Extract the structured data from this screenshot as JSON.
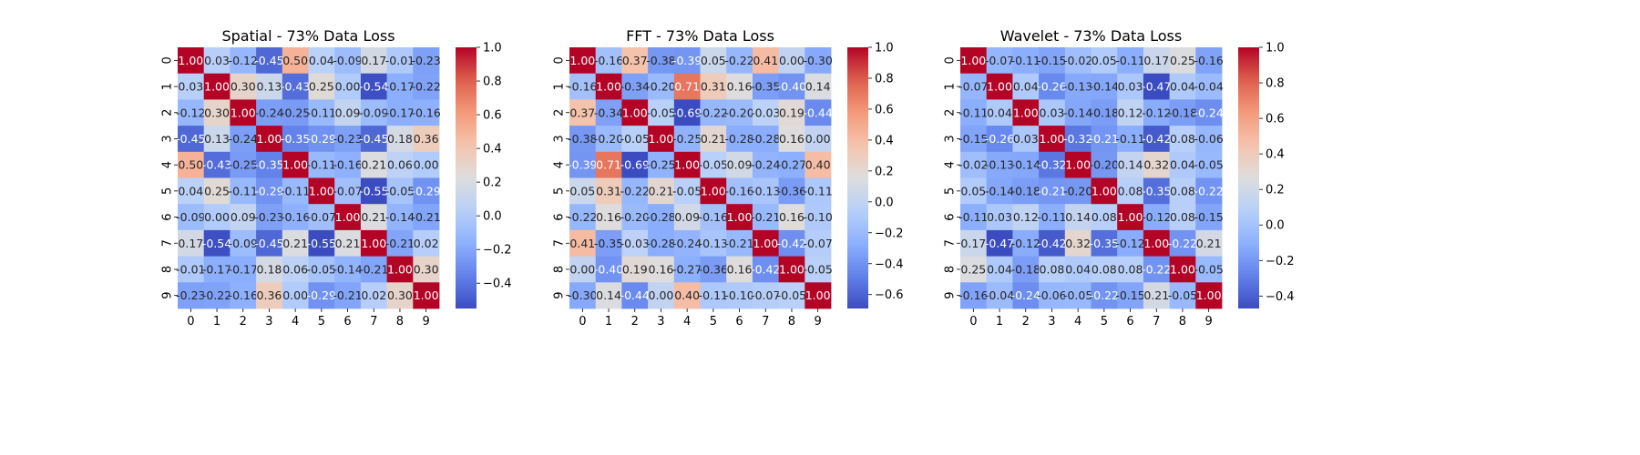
{
  "chart_data": [
    {
      "type": "heatmap",
      "title": "Spatial - 73% Data Loss",
      "x_labels": [
        "0",
        "1",
        "2",
        "3",
        "4",
        "5",
        "6",
        "7",
        "8",
        "9"
      ],
      "y_labels": [
        "0",
        "1",
        "2",
        "3",
        "4",
        "5",
        "6",
        "7",
        "8",
        "9"
      ],
      "colormap": "coolwarm",
      "colorbar": {
        "vmin": -0.55,
        "vmax": 1.0,
        "ticks": [
          -0.4,
          -0.2,
          0.0,
          0.2,
          0.4,
          0.6,
          0.8,
          1.0
        ]
      },
      "values": [
        [
          1.0,
          0.03,
          -0.12,
          -0.45,
          0.5,
          0.04,
          -0.09,
          0.17,
          -0.01,
          -0.23
        ],
        [
          0.03,
          1.0,
          0.3,
          0.13,
          -0.43,
          0.25,
          -0.0,
          -0.54,
          -0.17,
          -0.22
        ],
        [
          -0.12,
          0.3,
          1.0,
          -0.24,
          -0.25,
          -0.11,
          0.09,
          -0.09,
          -0.17,
          -0.16
        ],
        [
          -0.45,
          0.13,
          -0.24,
          1.0,
          -0.35,
          -0.29,
          -0.23,
          -0.45,
          0.18,
          0.36
        ],
        [
          0.5,
          -0.43,
          -0.25,
          -0.35,
          1.0,
          -0.11,
          -0.16,
          0.21,
          0.06,
          -0.0
        ],
        [
          0.04,
          0.25,
          -0.11,
          -0.29,
          -0.11,
          1.0,
          -0.07,
          -0.55,
          -0.05,
          -0.29
        ],
        [
          -0.09,
          -0.0,
          0.09,
          -0.23,
          -0.16,
          -0.07,
          1.0,
          0.21,
          -0.14,
          -0.21
        ],
        [
          0.17,
          -0.54,
          -0.09,
          -0.45,
          0.21,
          -0.55,
          0.21,
          1.0,
          -0.21,
          0.02
        ],
        [
          -0.01,
          -0.17,
          -0.17,
          0.18,
          0.06,
          -0.05,
          -0.14,
          -0.21,
          1.0,
          0.3
        ],
        [
          -0.23,
          -0.22,
          -0.16,
          0.36,
          -0.0,
          -0.29,
          -0.21,
          0.02,
          0.3,
          1.0
        ]
      ]
    },
    {
      "type": "heatmap",
      "title": "FFT - 73% Data Loss",
      "x_labels": [
        "0",
        "1",
        "2",
        "3",
        "4",
        "5",
        "6",
        "7",
        "8",
        "9"
      ],
      "y_labels": [
        "0",
        "1",
        "2",
        "3",
        "4",
        "5",
        "6",
        "7",
        "8",
        "9"
      ],
      "colormap": "coolwarm",
      "colorbar": {
        "vmin": -0.69,
        "vmax": 1.0,
        "ticks": [
          -0.6,
          -0.4,
          -0.2,
          0.0,
          0.2,
          0.4,
          0.6,
          0.8,
          1.0
        ]
      },
      "values": [
        [
          1.0,
          -0.16,
          0.37,
          -0.38,
          -0.39,
          0.05,
          -0.22,
          0.41,
          0.0,
          -0.3
        ],
        [
          -0.16,
          1.0,
          -0.34,
          -0.2,
          0.71,
          0.31,
          0.16,
          -0.35,
          -0.4,
          0.14
        ],
        [
          0.37,
          -0.34,
          1.0,
          -0.05,
          -0.69,
          -0.22,
          -0.2,
          -0.03,
          0.19,
          -0.44
        ],
        [
          -0.38,
          -0.2,
          -0.05,
          1.0,
          -0.25,
          0.21,
          -0.28,
          -0.28,
          0.16,
          0.0
        ],
        [
          -0.39,
          0.71,
          -0.69,
          -0.25,
          1.0,
          -0.05,
          0.09,
          -0.24,
          -0.27,
          0.4
        ],
        [
          0.05,
          0.31,
          -0.22,
          0.21,
          -0.05,
          1.0,
          -0.16,
          -0.13,
          -0.36,
          -0.11
        ],
        [
          -0.22,
          0.16,
          -0.2,
          -0.28,
          0.09,
          -0.16,
          1.0,
          -0.21,
          0.16,
          -0.1
        ],
        [
          0.41,
          -0.35,
          -0.03,
          -0.28,
          -0.24,
          -0.13,
          -0.21,
          1.0,
          -0.42,
          -0.07
        ],
        [
          0.0,
          -0.4,
          0.19,
          0.16,
          -0.27,
          -0.36,
          0.16,
          -0.42,
          1.0,
          -0.05
        ],
        [
          -0.3,
          0.14,
          -0.44,
          0.0,
          0.4,
          -0.11,
          -0.1,
          -0.07,
          -0.05,
          1.0
        ]
      ]
    },
    {
      "type": "heatmap",
      "title": "Wavelet - 73% Data Loss",
      "x_labels": [
        "0",
        "1",
        "2",
        "3",
        "4",
        "5",
        "6",
        "7",
        "8",
        "9"
      ],
      "y_labels": [
        "0",
        "1",
        "2",
        "3",
        "4",
        "5",
        "6",
        "7",
        "8",
        "9"
      ],
      "colormap": "coolwarm",
      "colorbar": {
        "vmin": -0.47,
        "vmax": 1.0,
        "ticks": [
          -0.4,
          -0.2,
          0.0,
          0.2,
          0.4,
          0.6,
          0.8,
          1.0
        ]
      },
      "values": [
        [
          1.0,
          -0.07,
          -0.11,
          -0.15,
          -0.02,
          0.05,
          -0.11,
          0.17,
          0.25,
          -0.16
        ],
        [
          -0.07,
          1.0,
          0.04,
          -0.26,
          -0.13,
          -0.14,
          0.03,
          -0.47,
          0.04,
          -0.04
        ],
        [
          -0.11,
          0.04,
          1.0,
          0.03,
          -0.14,
          -0.18,
          0.12,
          -0.12,
          -0.18,
          -0.24
        ],
        [
          -0.15,
          -0.26,
          0.03,
          1.0,
          -0.32,
          -0.21,
          -0.11,
          -0.42,
          0.08,
          -0.06
        ],
        [
          -0.02,
          -0.13,
          -0.14,
          -0.32,
          1.0,
          -0.2,
          0.14,
          0.32,
          0.04,
          -0.05
        ],
        [
          0.05,
          -0.14,
          -0.18,
          -0.21,
          -0.2,
          1.0,
          0.08,
          -0.35,
          0.08,
          -0.22
        ],
        [
          -0.11,
          0.03,
          0.12,
          -0.11,
          0.14,
          0.08,
          1.0,
          -0.12,
          0.08,
          -0.15
        ],
        [
          0.17,
          -0.47,
          -0.12,
          -0.42,
          0.32,
          -0.35,
          -0.12,
          1.0,
          -0.22,
          0.21
        ],
        [
          0.25,
          0.04,
          -0.18,
          0.08,
          0.04,
          0.08,
          0.08,
          -0.22,
          1.0,
          -0.05
        ],
        [
          -0.16,
          -0.04,
          -0.24,
          -0.06,
          -0.05,
          -0.22,
          -0.15,
          0.21,
          -0.05,
          1.0
        ]
      ]
    }
  ]
}
